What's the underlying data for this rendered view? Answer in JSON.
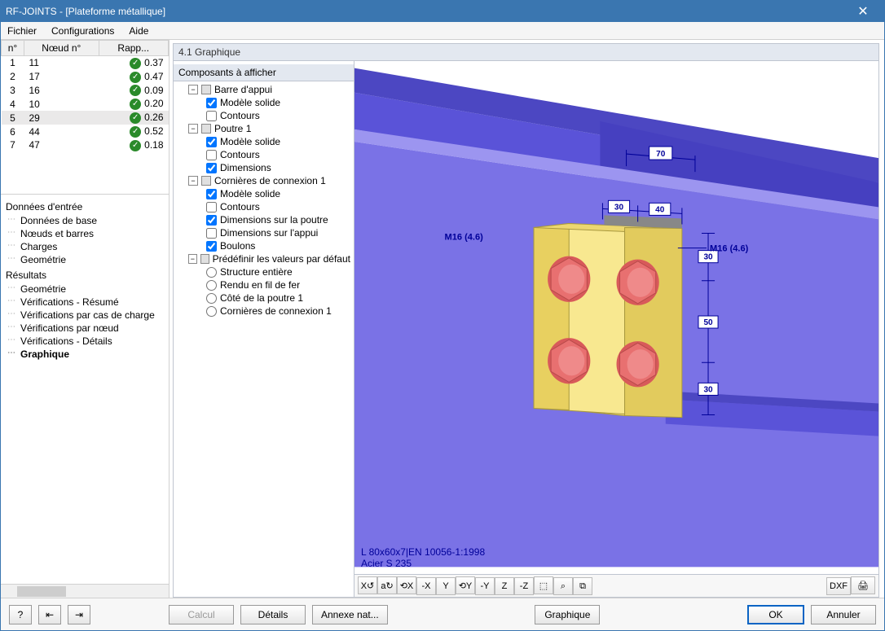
{
  "window": {
    "title": "RF-JOINTS - [Plateforme métallique]",
    "close": "✕"
  },
  "menu": {
    "fichier": "Fichier",
    "configurations": "Configurations",
    "aide": "Aide"
  },
  "grid": {
    "headers": {
      "no": "n°",
      "noeud": "Nœud n°",
      "rapport": "Rapp..."
    },
    "rows": [
      {
        "n": "1",
        "noeud": "11",
        "rapp": "0.37",
        "ok": true,
        "sel": false
      },
      {
        "n": "2",
        "noeud": "17",
        "rapp": "0.47",
        "ok": true,
        "sel": false
      },
      {
        "n": "3",
        "noeud": "16",
        "rapp": "0.09",
        "ok": true,
        "sel": false
      },
      {
        "n": "4",
        "noeud": "10",
        "rapp": "0.20",
        "ok": true,
        "sel": false
      },
      {
        "n": "5",
        "noeud": "29",
        "rapp": "0.26",
        "ok": true,
        "sel": true
      },
      {
        "n": "6",
        "noeud": "44",
        "rapp": "0.52",
        "ok": true,
        "sel": false
      },
      {
        "n": "7",
        "noeud": "47",
        "rapp": "0.18",
        "ok": true,
        "sel": false
      }
    ]
  },
  "nav": {
    "entree": {
      "title": "Données d'entrée",
      "items": [
        "Données de base",
        "Nœuds et barres",
        "Charges",
        "Geométrie"
      ]
    },
    "resultats": {
      "title": "Résultats",
      "items": [
        "Geométrie",
        "Vérifications - Résumé",
        "Vérifications par cas de charge",
        "Vérifications par nœud",
        "Vérifications - Détails",
        "Graphique"
      ],
      "active": "Graphique"
    }
  },
  "panel": {
    "title": "4.1 Graphique",
    "tree_header": "Composants à afficher",
    "nodes": [
      {
        "lvl": 1,
        "type": "group",
        "label": "Barre d'appui",
        "open": true,
        "sq": true
      },
      {
        "lvl": 2,
        "type": "check",
        "label": "Modèle solide",
        "checked": true
      },
      {
        "lvl": 2,
        "type": "check",
        "label": "Contours",
        "checked": false
      },
      {
        "lvl": 1,
        "type": "group",
        "label": "Poutre 1",
        "open": true,
        "sq": true
      },
      {
        "lvl": 2,
        "type": "check",
        "label": "Modèle solide",
        "checked": true
      },
      {
        "lvl": 2,
        "type": "check",
        "label": "Contours",
        "checked": false
      },
      {
        "lvl": 2,
        "type": "check",
        "label": "Dimensions",
        "checked": true
      },
      {
        "lvl": 1,
        "type": "group",
        "label": "Cornières de connexion  1",
        "open": true,
        "sq": true
      },
      {
        "lvl": 2,
        "type": "check",
        "label": "Modèle solide",
        "checked": true
      },
      {
        "lvl": 2,
        "type": "check",
        "label": "Contours",
        "checked": false
      },
      {
        "lvl": 2,
        "type": "check",
        "label": "Dimensions sur la poutre",
        "checked": true
      },
      {
        "lvl": 2,
        "type": "check",
        "label": "Dimensions sur l'appui",
        "checked": false
      },
      {
        "lvl": 2,
        "type": "check",
        "label": "Boulons",
        "checked": true
      },
      {
        "lvl": 1,
        "type": "group",
        "label": "Prédéfinir les valeurs par défaut",
        "open": true,
        "sq": true
      },
      {
        "lvl": 2,
        "type": "radio",
        "label": "Structure entière",
        "checked": false
      },
      {
        "lvl": 2,
        "type": "radio",
        "label": "Rendu en fil de fer",
        "checked": false
      },
      {
        "lvl": 2,
        "type": "radio",
        "label": "Côté de la poutre  1",
        "checked": false
      },
      {
        "lvl": 2,
        "type": "radio",
        "label": "Cornières de connexion  1",
        "checked": false
      }
    ]
  },
  "view": {
    "bolt_label_left": "M16 (4.6)",
    "bolt_label_right": "M16 (4.6)",
    "info_line1": "L 80x60x7|EN 10056-1:1998",
    "info_line2": "Acier S 235",
    "dims": {
      "top70": "70",
      "d30a": "30",
      "d40": "40",
      "r30a": "30",
      "r50": "50",
      "r30b": "30"
    },
    "colors": {
      "beam_fill": "#7a72e6",
      "beam_dark": "#4c47c2",
      "beam_light": "#b2aef6",
      "background": "#ffffff",
      "angle_fill": "#f4df7a",
      "angle_edge": "#a8983f",
      "bolt_fill": "#e87070",
      "bolt_edge": "#b84a4a",
      "dim_color": "#000099"
    }
  },
  "viewtoolbar": {
    "buttons": [
      "X↺",
      "a↻",
      "⟲X",
      "-X",
      "Y",
      "⟲Y",
      "-Y",
      "Z",
      "-Z",
      "⬚",
      "⌕",
      "⧉"
    ],
    "right": [
      "DXF",
      "🖨"
    ]
  },
  "footer": {
    "help": "?",
    "prev": "⇤",
    "next": "⇥",
    "calcul": "Calcul",
    "details": "Détails",
    "annexe": "Annexe nat...",
    "graphique": "Graphique",
    "ok": "OK",
    "annuler": "Annuler"
  }
}
